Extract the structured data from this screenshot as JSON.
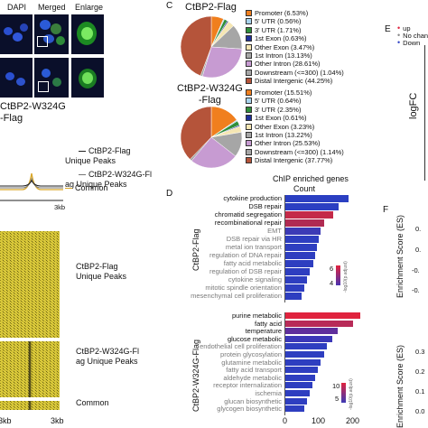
{
  "panel_a": {
    "headers": [
      "DAPI",
      "Merged",
      "Enlarge"
    ]
  },
  "panel_b": {
    "label": "CtBP2-W324G\n-Flag",
    "legend": [
      "CtBP2-Flag\nUnique Peaks",
      "CtBP2-W324G-Fl\nag Unique Peaks",
      "Common"
    ],
    "axis_right": "3kb",
    "heatmap_labels": [
      "CtBP2-Flag\nUnique Peaks",
      "CtBP2-W324G-Fl\nag Unique Peaks",
      "Common"
    ],
    "axis_left": "3kb",
    "axis_right2": "3kb"
  },
  "panel_c": {
    "letter": "C",
    "pie1_title": "CtBP2-Flag",
    "pie2_title": "CtBP2-W324G\n-Flag",
    "colors": [
      "#f07f1e",
      "#a9d4ee",
      "#2f8f3a",
      "#1f2f9a",
      "#f5e6b3",
      "#a6a6a6",
      "#c79bd2",
      "#b5543a"
    ],
    "pie1": [
      {
        "label": "Promoter (6.53%)",
        "value": 6.53
      },
      {
        "label": "5' UTR (0.56%)",
        "value": 0.56
      },
      {
        "label": "3' UTR (1.71%)",
        "value": 1.71
      },
      {
        "label": "1st Exon (0.63%)",
        "value": 0.63
      },
      {
        "label": "Other Exon (3.47%)",
        "value": 3.47
      },
      {
        "label": "1st Intron (13.13%)",
        "value": 13.13
      },
      {
        "label": "Other Intron (28.61%)",
        "value": 28.61
      },
      {
        "label": "Downstream (<=300) (1.04%)",
        "value": 1.04
      },
      {
        "label": "Distal Intergenic (44.25%)",
        "value": 44.25
      }
    ],
    "pie2": [
      {
        "label": "Promoter (15.51%)",
        "value": 15.51
      },
      {
        "label": "5' UTR (0.64%)",
        "value": 0.64
      },
      {
        "label": "3' UTR (2.35%)",
        "value": 2.35
      },
      {
        "label": "1st Exon (0.61%)",
        "value": 0.61
      },
      {
        "label": "Other Exon (3.23%)",
        "value": 3.23
      },
      {
        "label": "1st Intron (13.22%)",
        "value": 13.22
      },
      {
        "label": "Other Intron (25.53%)",
        "value": 25.53
      },
      {
        "label": "Downstream (<=300) (1.14%)",
        "value": 1.14
      },
      {
        "label": "Distal Intergenic (37.77%)",
        "value": 37.77
      }
    ]
  },
  "panel_d": {
    "letter": "D",
    "title": "ChIP enriched genes",
    "subtitle": "Count",
    "group1_label": "CtBP2-Flag",
    "group2_label": "CtBP2-W324G-Flag",
    "colorbar_label": "-log10(p.adjust)",
    "cb1_ticks": [
      "6",
      "4"
    ],
    "cb2_ticks": [
      "10",
      "5"
    ],
    "x_ticks": [
      "0",
      "100",
      "200"
    ]
  },
  "chart_data": [
    {
      "type": "bar",
      "orientation": "horizontal",
      "group": "CtBP2-Flag",
      "categories": [
        "cytokine production",
        "DSB repair",
        "chromatid segregation",
        "recombinational repair",
        "EMT",
        "DSB repair via HR",
        "metal ion transport",
        "regulation of DNA repair",
        "fatty acid metabolic",
        "regulation of DSB repair",
        "cytokine signaling",
        "mitotic spindle orientation",
        "mesenchymal cell proliferation"
      ],
      "values": [
        180,
        152,
        138,
        112,
        100,
        96,
        90,
        86,
        80,
        70,
        62,
        54,
        46
      ],
      "colors": [
        "#2b3fc2",
        "#2b3fc2",
        "#c42a49",
        "#b02a52",
        "#3c3ab6",
        "#2e3ec0",
        "#2e3ec0",
        "#2e3ec0",
        "#2e3ec0",
        "#2e3ec0",
        "#2e3ec0",
        "#2e3ec0",
        "#2e3ec0"
      ]
    },
    {
      "type": "bar",
      "orientation": "horizontal",
      "group": "CtBP2-W324G-Flag",
      "categories": [
        "purine metabolic",
        "fatty acid",
        "temperature",
        "glucose metabolic",
        "endothelial cell proliferation",
        "protein glycosylation",
        "glutamine metabolic",
        "fatty acid transport",
        "aldehyde metabolic",
        "receptor internalization",
        "ischemia",
        "glucan biosynthetic",
        "glycogen biosynthetic"
      ],
      "values": [
        215,
        195,
        150,
        135,
        120,
        110,
        100,
        92,
        85,
        78,
        70,
        62,
        55
      ],
      "colors": [
        "#e0233e",
        "#b82b58",
        "#5f2f9c",
        "#3b38b8",
        "#2e3ec0",
        "#2e3ec0",
        "#2e3ec0",
        "#2e3ec0",
        "#2e3ec0",
        "#2e3ec0",
        "#2e3ec0",
        "#2e3ec0",
        "#2e3ec0"
      ]
    }
  ],
  "panel_e": {
    "letter": "E",
    "legend": [
      "up",
      "No change",
      "Down"
    ],
    "ylabel": "logFC"
  },
  "panel_f": {
    "letter": "F",
    "ylabel": "Enrichment Score (ES)",
    "ticks1": [
      "0.",
      "0.",
      "-0.",
      "-0."
    ],
    "ticks2": [
      "0.3",
      "0.2",
      "0.1",
      "0.0"
    ]
  }
}
